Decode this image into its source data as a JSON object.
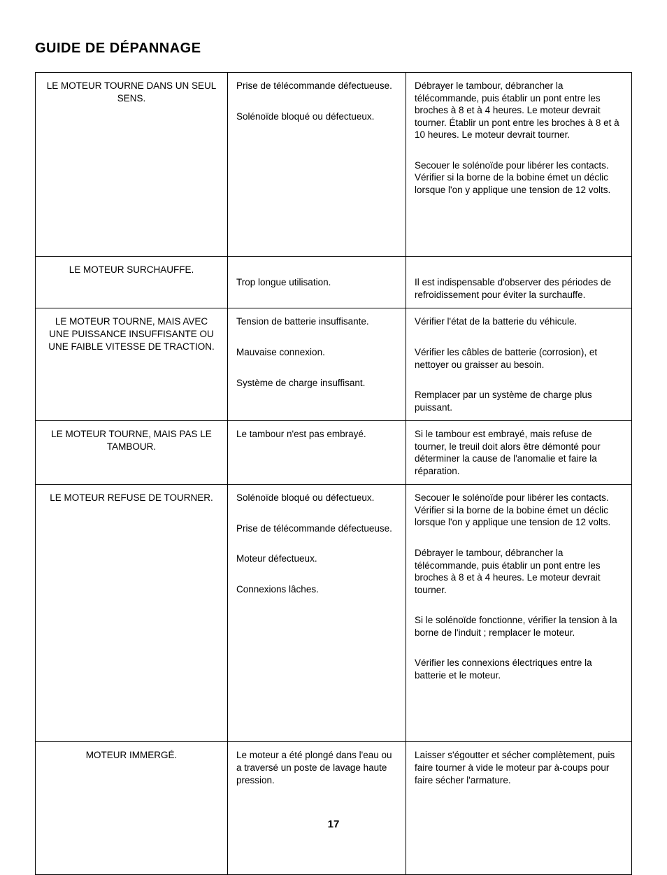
{
  "page_title": "GUIDE DE DÉPANNAGE",
  "page_number": "17",
  "table": {
    "rows": [
      {
        "problem": "LE MOTEUR TOURNE DANS UN SEUL SENS.",
        "causes": [
          "Prise de télécommande défectueuse.",
          "Solénoïde bloqué ou défectueux."
        ],
        "solutions": [
          "Débrayer le tambour, débrancher la télécommande, puis établir un pont entre les broches à 8 et à 4 heures. Le moteur devrait tourner. Établir un pont entre les broches à 8 et à 10 heures. Le moteur devrait tourner.",
          "Secouer le solénoïde pour libérer les contacts. Vérifier si la borne de la bobine émet un déclic lorsque l'on y applique une tension de 12 volts."
        ],
        "extra_bottom_padding": true
      },
      {
        "problem": "LE MOTEUR SURCHAUFFE.",
        "causes": [
          "Trop longue utilisation."
        ],
        "solutions": [
          "Il est indispensable d'observer des périodes de refroidissement pour éviter la surchauffe."
        ],
        "top_padding": true
      },
      {
        "problem": "LE MOTEUR TOURNE, MAIS AVEC UNE PUISSANCE INSUFFISANTE OU UNE FAIBLE VITESSE DE TRACTION.",
        "causes": [
          "Tension de batterie insuffisante.",
          "Mauvaise connexion.",
          "Système de charge insuffisant."
        ],
        "solutions": [
          "Vérifier l'état de la batterie du véhicule.",
          "Vérifier les câbles de batterie (corrosion), et nettoyer ou graisser au besoin.",
          "Remplacer par un système de charge plus puissant."
        ]
      },
      {
        "problem": "LE MOTEUR TOURNE, MAIS PAS LE TAMBOUR.",
        "causes": [
          "Le tambour n'est pas embrayé."
        ],
        "solutions": [
          "Si le tambour est embrayé, mais refuse de tourner, le treuil doit alors être démonté pour déterminer la cause de l'anomalie et faire la réparation."
        ]
      },
      {
        "problem": "LE MOTEUR REFUSE DE TOURNER.",
        "causes": [
          "Solénoïde bloqué ou défectueux.",
          "Prise de télécommande défectueuse.",
          "Moteur défectueux.",
          "Connexions lâches."
        ],
        "solutions": [
          "Secouer le solénoïde pour libérer les contacts. Vérifier si la borne de la bobine émet un déclic lorsque l'on y applique une tension de 12 volts.",
          "Débrayer le tambour, débrancher la télécommande, puis établir un pont entre les broches à 8 et à 4 heures. Le moteur devrait tourner.",
          "Si le solénoïde fonctionne, vérifier la tension à la borne de l'induit ; remplacer le moteur.",
          "Vérifier les connexions électriques entre la batterie et le moteur."
        ],
        "extra_bottom_padding": true
      },
      {
        "problem": "MOTEUR IMMERGÉ.",
        "causes": [
          "Le moteur a été plongé dans l'eau ou a traversé un poste de lavage haute pression."
        ],
        "solutions": [
          "Laisser s'égoutter et sécher complètement, puis faire tourner à vide le moteur par à-coups pour faire sécher l'armature."
        ],
        "extra_bottom_padding_large": true
      }
    ]
  }
}
